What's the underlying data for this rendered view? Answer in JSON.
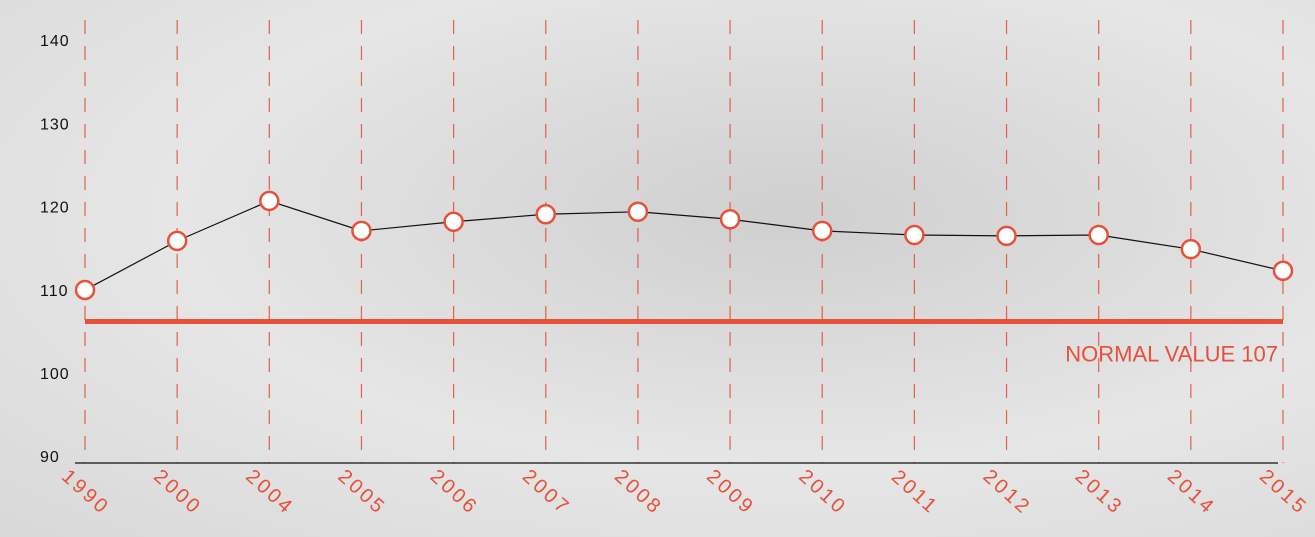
{
  "chart_data": {
    "type": "line",
    "categories": [
      "1990",
      "2000",
      "2004",
      "2005",
      "2006",
      "2007",
      "2008",
      "2009",
      "2010",
      "2011",
      "2012",
      "2013",
      "2014",
      "2015"
    ],
    "values": [
      110.8,
      116.7,
      121.5,
      117.9,
      119.0,
      119.9,
      120.2,
      119.3,
      117.9,
      117.4,
      117.3,
      117.4,
      115.7,
      113.1
    ],
    "color": "#111111",
    "marker_color": "#e8503a",
    "ylim": [
      90,
      140
    ],
    "yticks": [
      90,
      100,
      110,
      120,
      130,
      140
    ],
    "reference": {
      "value": 107,
      "label": "NORMAL VALUE 107",
      "color": "#e8503a"
    }
  }
}
